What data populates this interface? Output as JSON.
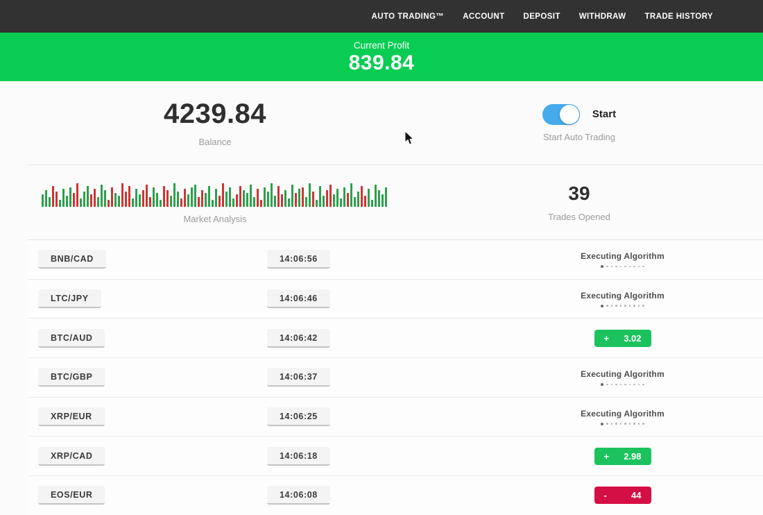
{
  "nav": {
    "items": [
      {
        "label": "AUTO TRADING™"
      },
      {
        "label": "ACCOUNT"
      },
      {
        "label": "DEPOSIT"
      },
      {
        "label": "WITHDRAW"
      },
      {
        "label": "TRADE HISTORY"
      }
    ]
  },
  "profit_banner": {
    "label": "Current Profit",
    "value": "839.84"
  },
  "account": {
    "balance": "4239.84",
    "balance_label": "Balance",
    "toggle_state": "on",
    "toggle_label": "Start",
    "toggle_sublabel": "Start Auto Trading"
  },
  "market": {
    "chart_label": "Market Analysis",
    "trades_opened": "39",
    "trades_label": "Trades Opened"
  },
  "chart_data": {
    "type": "bar",
    "title": "Market Analysis",
    "description": "decorative sparkline of green/red market bars, shared bottom baseline, heights in px",
    "bars": [
      [
        18,
        "g"
      ],
      [
        24,
        "g"
      ],
      [
        14,
        "g"
      ],
      [
        30,
        "r"
      ],
      [
        22,
        "r"
      ],
      [
        10,
        "g"
      ],
      [
        26,
        "g"
      ],
      [
        16,
        "g"
      ],
      [
        28,
        "g"
      ],
      [
        20,
        "r"
      ],
      [
        34,
        "r"
      ],
      [
        12,
        "g"
      ],
      [
        22,
        "g"
      ],
      [
        30,
        "g"
      ],
      [
        18,
        "r"
      ],
      [
        26,
        "r"
      ],
      [
        14,
        "g"
      ],
      [
        32,
        "g"
      ],
      [
        24,
        "g"
      ],
      [
        10,
        "r"
      ],
      [
        28,
        "r"
      ],
      [
        20,
        "g"
      ],
      [
        16,
        "g"
      ],
      [
        34,
        "r"
      ],
      [
        22,
        "r"
      ],
      [
        30,
        "r"
      ],
      [
        12,
        "g"
      ],
      [
        26,
        "g"
      ],
      [
        18,
        "g"
      ],
      [
        24,
        "r"
      ],
      [
        32,
        "r"
      ],
      [
        14,
        "r"
      ],
      [
        28,
        "g"
      ],
      [
        20,
        "g"
      ],
      [
        10,
        "g"
      ],
      [
        30,
        "r"
      ],
      [
        24,
        "r"
      ],
      [
        16,
        "g"
      ],
      [
        34,
        "g"
      ],
      [
        22,
        "g"
      ],
      [
        12,
        "r"
      ],
      [
        26,
        "r"
      ],
      [
        18,
        "g"
      ],
      [
        28,
        "g"
      ],
      [
        32,
        "g"
      ],
      [
        14,
        "r"
      ],
      [
        24,
        "r"
      ],
      [
        20,
        "g"
      ],
      [
        30,
        "g"
      ],
      [
        10,
        "g"
      ],
      [
        26,
        "g"
      ],
      [
        16,
        "r"
      ],
      [
        34,
        "r"
      ],
      [
        22,
        "g"
      ],
      [
        28,
        "g"
      ],
      [
        12,
        "g"
      ],
      [
        18,
        "r"
      ],
      [
        30,
        "r"
      ],
      [
        24,
        "g"
      ],
      [
        20,
        "g"
      ],
      [
        32,
        "g"
      ],
      [
        14,
        "g"
      ],
      [
        26,
        "r"
      ],
      [
        10,
        "r"
      ],
      [
        28,
        "g"
      ],
      [
        22,
        "g"
      ],
      [
        34,
        "g"
      ],
      [
        16,
        "g"
      ],
      [
        30,
        "r"
      ],
      [
        18,
        "r"
      ],
      [
        24,
        "g"
      ],
      [
        12,
        "g"
      ],
      [
        32,
        "g"
      ],
      [
        20,
        "r"
      ],
      [
        26,
        "g"
      ],
      [
        28,
        "r"
      ],
      [
        14,
        "g"
      ],
      [
        34,
        "g"
      ],
      [
        22,
        "r"
      ],
      [
        10,
        "g"
      ],
      [
        30,
        "g"
      ],
      [
        16,
        "g"
      ],
      [
        24,
        "r"
      ],
      [
        32,
        "r"
      ],
      [
        18,
        "g"
      ],
      [
        26,
        "g"
      ],
      [
        12,
        "g"
      ],
      [
        28,
        "g"
      ],
      [
        20,
        "r"
      ],
      [
        34,
        "g"
      ],
      [
        14,
        "g"
      ],
      [
        22,
        "g"
      ],
      [
        30,
        "r"
      ],
      [
        16,
        "r"
      ],
      [
        26,
        "g"
      ],
      [
        10,
        "g"
      ],
      [
        32,
        "g"
      ],
      [
        24,
        "g"
      ],
      [
        18,
        "g"
      ],
      [
        28,
        "g"
      ]
    ]
  },
  "trades": [
    {
      "pair": "BNB/CAD",
      "time": "14:06:56",
      "status": "executing",
      "status_label": "Executing Algorithm"
    },
    {
      "pair": "LTC/JPY",
      "time": "14:06:46",
      "status": "executing",
      "status_label": "Executing Algorithm"
    },
    {
      "pair": "BTC/AUD",
      "time": "14:06:42",
      "status": "result",
      "result": "profit",
      "sign": "+",
      "amount": "3.02"
    },
    {
      "pair": "BTC/GBP",
      "time": "14:06:37",
      "status": "executing",
      "status_label": "Executing Algorithm"
    },
    {
      "pair": "XRP/EUR",
      "time": "14:06:25",
      "status": "executing",
      "status_label": "Executing Algorithm"
    },
    {
      "pair": "XRP/CAD",
      "time": "14:06:18",
      "status": "result",
      "result": "profit",
      "sign": "+",
      "amount": "2.98"
    },
    {
      "pair": "EOS/EUR",
      "time": "14:06:08",
      "status": "result",
      "result": "loss",
      "sign": "-",
      "amount": "44"
    }
  ],
  "colors": {
    "nav_bg": "#323232",
    "banner_green": "#09cd53",
    "profit_green": "#1cc25e",
    "loss_red": "#d40f45",
    "toggle_blue": "#46aaeb"
  }
}
